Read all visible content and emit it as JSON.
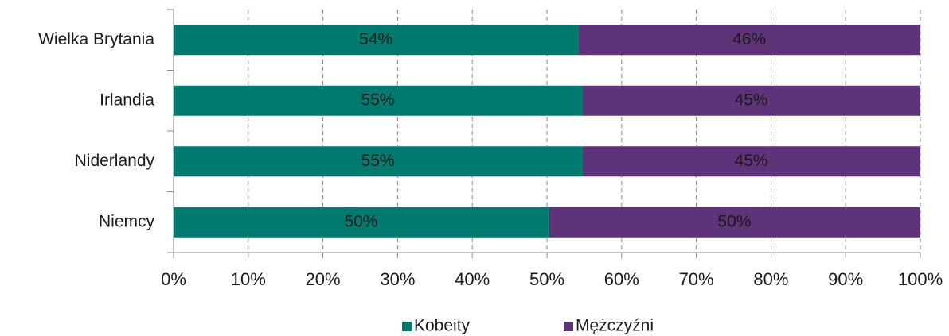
{
  "chart_data": {
    "type": "stacked-barh",
    "categories": [
      "Wielka Brytania",
      "Irlandia",
      "Niderlandy",
      "Niemcy"
    ],
    "series": [
      {
        "name": "Kobeity",
        "color": "#007a6e",
        "values": [
          54.2,
          54.7,
          54.7,
          50.2
        ],
        "value_labels": [
          "54%",
          "55%",
          "55%",
          "50%"
        ]
      },
      {
        "name": "Mężczyźni",
        "color": "#5e3379",
        "values": [
          45.8,
          45.3,
          45.3,
          49.8
        ],
        "value_labels": [
          "46%",
          "45%",
          "45%",
          "50%"
        ]
      }
    ],
    "xlim": [
      0,
      100
    ],
    "xticks": [
      {
        "value": 0,
        "label": "0%"
      },
      {
        "value": 10,
        "label": "10%"
      },
      {
        "value": 20,
        "label": "20%"
      },
      {
        "value": 30,
        "label": "30%"
      },
      {
        "value": 40,
        "label": "40%"
      },
      {
        "value": 50,
        "label": "50%"
      },
      {
        "value": 60,
        "label": "60%"
      },
      {
        "value": 70,
        "label": "70%"
      },
      {
        "value": 80,
        "label": "80%"
      },
      {
        "value": 90,
        "label": "90%"
      },
      {
        "value": 100,
        "label": "100%"
      }
    ],
    "grid": true,
    "legend": "bottom"
  }
}
